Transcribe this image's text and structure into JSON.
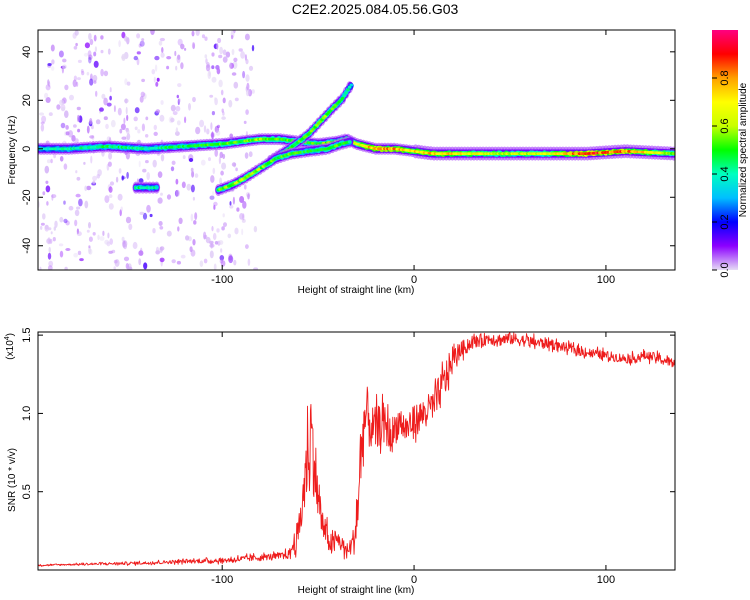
{
  "title": "C2E2.2025.084.05.56.G03",
  "chart_data": [
    {
      "type": "heatmap",
      "title": "C2E2.2025.084.05.56.G03",
      "xlabel": "Height of straight line (km)",
      "ylabel": "Frequency (Hz)",
      "xlim": [
        -196,
        136
      ],
      "ylim": [
        -50,
        49
      ],
      "xticks": [
        -100,
        0,
        100
      ],
      "xtick_labels": [
        "-100",
        "0",
        "100"
      ],
      "yticks": [
        -40,
        -20,
        0,
        20,
        40
      ],
      "ytick_labels": [
        "-40",
        "-20",
        "0",
        "20",
        "40"
      ],
      "colorbar": {
        "label": "Normalized spectral amplitude",
        "range": [
          0.0,
          1.0
        ],
        "ticks": [
          0.0,
          0.2,
          0.4,
          0.6,
          0.8
        ],
        "tick_labels": [
          "0.0",
          "0.2",
          "0.4",
          "0.6",
          "0.8"
        ],
        "colors": [
          "#e6dcf5",
          "#8c00ff",
          "#0000ff",
          "#00bfff",
          "#00ffc0",
          "#00ff00",
          "#c8ff00",
          "#ffff00",
          "#ffa000",
          "#ff0000",
          "#ff0080"
        ]
      },
      "traces": [
        {
          "name": "main-band",
          "points": [
            [
              -196,
              0
            ],
            [
              -180,
              0
            ],
            [
              -160,
              1
            ],
            [
              -140,
              0
            ],
            [
              -120,
              1
            ],
            [
              -100,
              2
            ],
            [
              -90,
              3
            ],
            [
              -80,
              4
            ],
            [
              -70,
              4
            ],
            [
              -60,
              3
            ],
            [
              -50,
              2
            ],
            [
              -40,
              3
            ],
            [
              -35,
              4
            ],
            [
              -30,
              2
            ],
            [
              -20,
              0
            ],
            [
              -10,
              0
            ],
            [
              0,
              -1
            ],
            [
              10,
              -2
            ],
            [
              30,
              -2
            ],
            [
              50,
              -2
            ],
            [
              70,
              -2
            ],
            [
              90,
              -2
            ],
            [
              110,
              -1
            ],
            [
              136,
              -2
            ]
          ],
          "amplitudes": [
            0.35,
            0.4,
            0.45,
            0.4,
            0.45,
            0.5,
            0.5,
            0.55,
            0.5,
            0.5,
            0.5,
            0.55,
            0.55,
            0.6,
            0.8,
            0.75,
            0.7,
            0.75,
            0.65,
            0.6,
            0.62,
            0.85,
            0.8,
            0.55
          ]
        },
        {
          "name": "upper-rising-branch",
          "points": [
            [
              -75,
              -5
            ],
            [
              -65,
              0
            ],
            [
              -55,
              6
            ],
            [
              -48,
              12
            ],
            [
              -42,
              17
            ],
            [
              -37,
              21
            ],
            [
              -34,
              25
            ],
            [
              -32,
              27
            ]
          ],
          "amplitudes": [
            0.45,
            0.5,
            0.5,
            0.55,
            0.5,
            0.45,
            0.4,
            0.3
          ]
        },
        {
          "name": "lower-rising-branch",
          "points": [
            [
              -102,
              -17
            ],
            [
              -95,
              -15
            ],
            [
              -88,
              -12
            ],
            [
              -80,
              -8
            ],
            [
              -72,
              -4
            ],
            [
              -64,
              -2
            ],
            [
              -55,
              -1
            ],
            [
              -45,
              0
            ],
            [
              -38,
              2
            ],
            [
              -33,
              3
            ]
          ],
          "amplitudes": [
            0.5,
            0.55,
            0.6,
            0.55,
            0.5,
            0.5,
            0.45,
            0.5,
            0.5,
            0.45
          ]
        },
        {
          "name": "detached-segment",
          "points": [
            [
              -145,
              -16
            ],
            [
              -140,
              -16
            ],
            [
              -134,
              -16
            ]
          ],
          "amplitudes": [
            0.45,
            0.4,
            0.4
          ]
        }
      ]
    },
    {
      "type": "line",
      "xlabel": "Height of straight line (km)",
      "ylabel": "SNR (10 * v/v)",
      "y_multiplier": "(x10⁴)",
      "y_multiplier_base": "(x10",
      "y_multiplier_exp": "4",
      "y_multiplier_close": ")",
      "xlim": [
        -196,
        136
      ],
      "ylim": [
        0,
        1.52
      ],
      "xticks": [
        -100,
        0,
        100
      ],
      "xtick_labels": [
        "-100",
        "0",
        "100"
      ],
      "yticks": [
        0.5,
        1.0,
        1.5
      ],
      "ytick_labels": [
        "0.5",
        "1.0",
        "1.5"
      ],
      "color": "#ee1c1c",
      "series": [
        {
          "name": "SNR",
          "x": [
            -196,
            -180,
            -160,
            -140,
            -120,
            -100,
            -90,
            -80,
            -70,
            -65,
            -60,
            -57,
            -54,
            -52,
            -50,
            -48,
            -45,
            -42,
            -40,
            -37,
            -35,
            -33,
            -31,
            -29,
            -27,
            -25,
            -22,
            -20,
            -16,
            -12,
            -8,
            -4,
            0,
            5,
            10,
            14,
            18,
            22,
            26,
            30,
            35,
            40,
            45,
            50,
            55,
            60,
            65,
            70,
            75,
            80,
            85,
            90,
            95,
            100,
            105,
            110,
            115,
            120,
            125,
            130,
            136
          ],
          "y": [
            0.03,
            0.035,
            0.04,
            0.045,
            0.055,
            0.06,
            0.07,
            0.08,
            0.09,
            0.1,
            0.25,
            0.55,
            0.9,
            0.7,
            0.45,
            0.3,
            0.2,
            0.15,
            0.2,
            0.15,
            0.12,
            0.15,
            0.2,
            0.45,
            0.85,
            1.0,
            0.9,
            0.9,
            0.95,
            0.85,
            0.95,
            0.9,
            0.95,
            1.0,
            1.05,
            1.15,
            1.28,
            1.38,
            1.42,
            1.45,
            1.47,
            1.48,
            1.47,
            1.48,
            1.47,
            1.46,
            1.45,
            1.45,
            1.43,
            1.42,
            1.4,
            1.39,
            1.38,
            1.37,
            1.36,
            1.35,
            1.35,
            1.37,
            1.36,
            1.34,
            1.32
          ],
          "noise": [
            0.005,
            0.005,
            0.008,
            0.01,
            0.012,
            0.015,
            0.02,
            0.02,
            0.02,
            0.03,
            0.1,
            0.2,
            0.3,
            0.25,
            0.15,
            0.1,
            0.08,
            0.06,
            0.06,
            0.05,
            0.05,
            0.06,
            0.1,
            0.2,
            0.25,
            0.2,
            0.15,
            0.14,
            0.12,
            0.12,
            0.1,
            0.1,
            0.1,
            0.1,
            0.1,
            0.12,
            0.1,
            0.06,
            0.05,
            0.04,
            0.04,
            0.04,
            0.04,
            0.04,
            0.04,
            0.035,
            0.035,
            0.035,
            0.03,
            0.03,
            0.03,
            0.03,
            0.03,
            0.03,
            0.03,
            0.03,
            0.03,
            0.03,
            0.03,
            0.03,
            0.03
          ]
        }
      ]
    }
  ]
}
